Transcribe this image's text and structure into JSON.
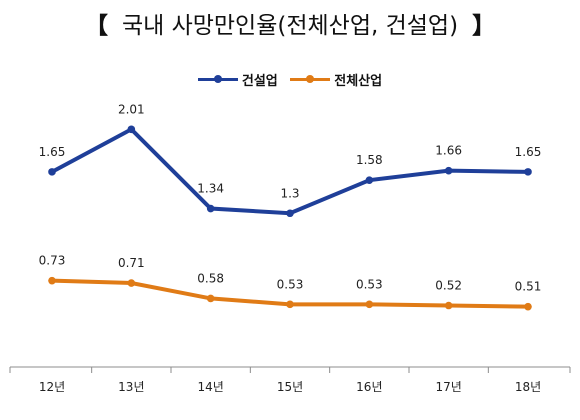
{
  "chart_data": {
    "type": "line",
    "title": "국내 사망만인율(전체산업, 건설업)",
    "title_brackets": [
      "【",
      "】"
    ],
    "categories": [
      "12년",
      "13년",
      "14년",
      "15년",
      "16년",
      "17년",
      "18년"
    ],
    "series": [
      {
        "name": "건설업",
        "color": "#1f3f99",
        "values": [
          1.65,
          2.01,
          1.34,
          1.3,
          1.58,
          1.66,
          1.65
        ],
        "labels": [
          "1.65",
          "2.01",
          "1.34",
          "1.3",
          "1.58",
          "1.66",
          "1.65"
        ]
      },
      {
        "name": "전체산업",
        "color": "#e07b16",
        "values": [
          0.73,
          0.71,
          0.58,
          0.53,
          0.53,
          0.52,
          0.51
        ],
        "labels": [
          "0.73",
          "0.71",
          "0.58",
          "0.53",
          "0.53",
          "0.52",
          "0.51"
        ]
      }
    ],
    "ylim": [
      0,
      2.3
    ],
    "legend_position": "top",
    "grid": false
  }
}
